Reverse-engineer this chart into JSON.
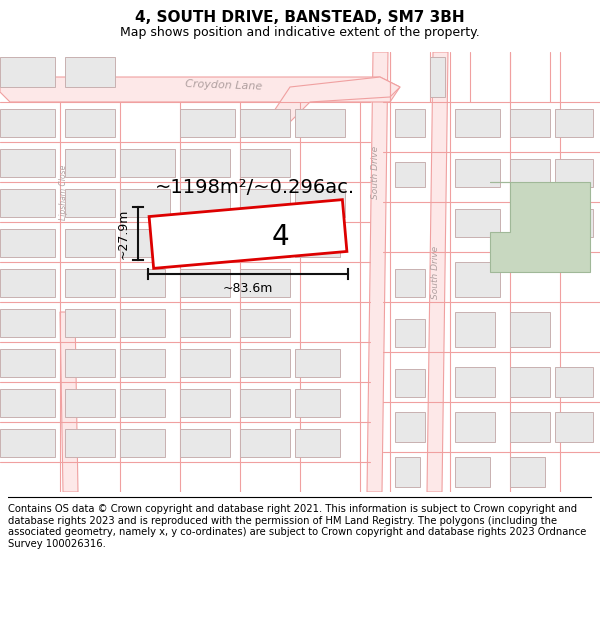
{
  "title": "4, SOUTH DRIVE, BANSTEAD, SM7 3BH",
  "subtitle": "Map shows position and indicative extent of the property.",
  "footer": "Contains OS data © Crown copyright and database right 2021. This information is subject to Crown copyright and database rights 2023 and is reproduced with the permission of HM Land Registry. The polygons (including the associated geometry, namely x, y co-ordinates) are subject to Crown copyright and database rights 2023 Ordnance Survey 100026316.",
  "area_label": "~1198m²/~0.296ac.",
  "width_label": "~83.6m",
  "height_label": "~27.9m",
  "lot_number": "4",
  "map_bg": "#ffffff",
  "road_line_color": "#f0a0a0",
  "road_fill_color": "#fde8e8",
  "building_color": "#e8e8e8",
  "building_edge": "#c8b0b0",
  "highlight_color": "#dd0000",
  "green_patch_color": "#c8d8c0",
  "green_patch_edge": "#a0b898",
  "title_fontsize": 11,
  "subtitle_fontsize": 9,
  "footer_fontsize": 7.2,
  "croydon_lane_label_color": "#b0a0a0",
  "south_drive_label_color": "#b0a0a0",
  "dim_line_color": "#111111",
  "area_label_fontsize": 14,
  "dim_label_fontsize": 9,
  "lot_fontsize": 20
}
